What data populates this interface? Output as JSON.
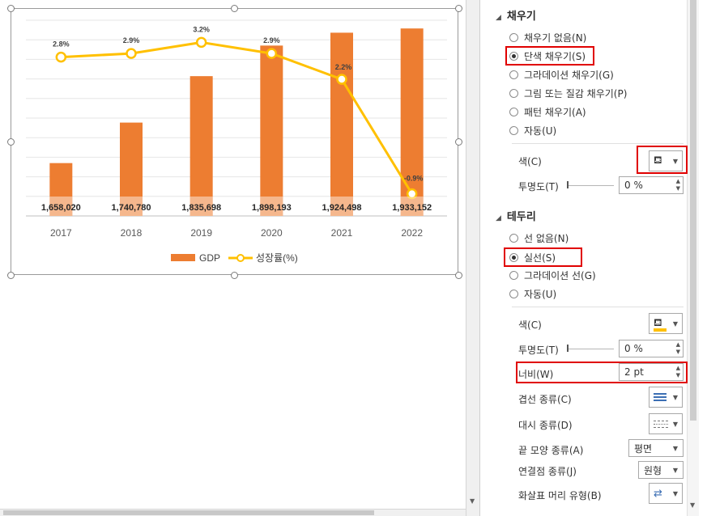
{
  "chart_data": {
    "type": "bar",
    "categories": [
      "2017",
      "2018",
      "2019",
      "2020",
      "2021",
      "2022"
    ],
    "series": [
      {
        "name": "GDP",
        "type": "bar",
        "color": "#ED7D31",
        "values": [
          1658020,
          1740780,
          1835698,
          1898193,
          1924498,
          1933152
        ],
        "labels": [
          "1,658,020",
          "1,740,780",
          "1,835,698",
          "1,898,193",
          "1,924,498",
          "1,933,152"
        ]
      },
      {
        "name": "성장률(%)",
        "type": "line",
        "color": "#FFC000",
        "values": [
          2.8,
          2.9,
          3.2,
          2.9,
          2.2,
          -0.9
        ],
        "labels": [
          "2.8%",
          "2.9%",
          "3.2%",
          "2.9%",
          "2.2%",
          "-0.9%"
        ]
      }
    ],
    "bar_axis_min": 1550000,
    "bar_axis_max": 1950000,
    "line_axis_min": -1.5,
    "line_axis_max": 3.8,
    "gridlines": true,
    "legend_position": "bottom"
  },
  "legend": {
    "gdp": "GDP",
    "growth": "성장률(%)"
  },
  "pane": {
    "fill": {
      "header": "채우기",
      "options": [
        "채우기 없음(N)",
        "단색 채우기(S)",
        "그라데이션 채우기(G)",
        "그림 또는 질감 채우기(P)",
        "패턴 채우기(A)",
        "자동(U)"
      ],
      "selected_index": 1,
      "color_label": "색(C)",
      "transparency_label": "투명도(T)",
      "transparency_value": "0 %"
    },
    "border": {
      "header": "테두리",
      "options": [
        "선 없음(N)",
        "실선(S)",
        "그라데이션 선(G)",
        "자동(U)"
      ],
      "selected_index": 1,
      "color_label": "색(C)",
      "color_swatch": "#FFC000",
      "transparency_label": "투명도(T)",
      "transparency_value": "0 %",
      "width_label": "너비(W)",
      "width_value": "2 pt",
      "compound_label": "겹선 종류(C)",
      "dash_label": "대시 종류(D)",
      "cap_label": "끝 모양 종류(A)",
      "cap_value": "평면",
      "join_label": "연결점 종류(J)",
      "join_value": "원형",
      "arrow_label": "화살표 머리 유형(B)"
    }
  },
  "icons": {
    "fill_color": "paint-bucket-icon",
    "line_color": "paint-bucket-icon",
    "compound": "compound-lines-icon",
    "dash": "dash-lines-icon",
    "arrow": "arrows-icon"
  }
}
